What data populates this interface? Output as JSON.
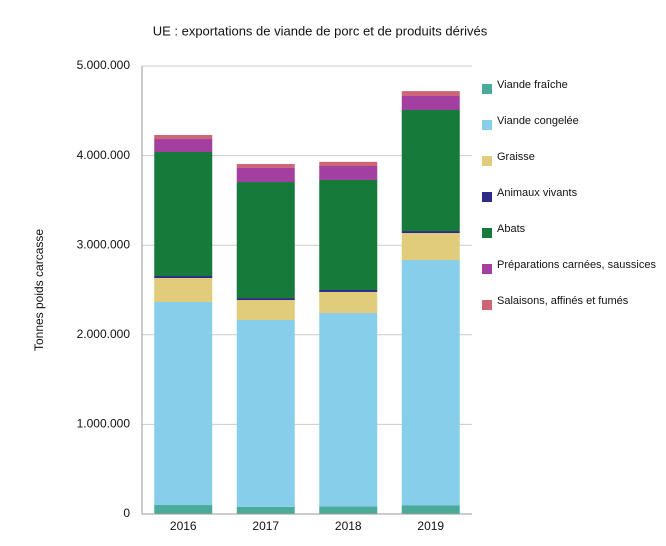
{
  "chart_data": {
    "type": "stacked_bar",
    "title": "UE : exportations de viande de porc et de produits dérivés",
    "y_label": "Tonnes poids carcasse",
    "categories": [
      "2016",
      "2017",
      "2018",
      "2019"
    ],
    "series": [
      {
        "name": "Viande fraîche",
        "color": "#4aab9b",
        "values": [
          100000,
          80000,
          85000,
          95000
        ]
      },
      {
        "name": "Viande congelée",
        "color": "#87ceeb",
        "values": [
          2266000,
          2085000,
          2158000,
          2740000
        ]
      },
      {
        "name": "Graisse",
        "color": "#e0cc7a",
        "values": [
          268000,
          223000,
          235000,
          301000
        ]
      },
      {
        "name": "Animaux vivants",
        "color": "#2e2a8a",
        "values": [
          22000,
          22000,
          22000,
          22000
        ]
      },
      {
        "name": "Abats",
        "color": "#167a3a",
        "values": [
          1384000,
          1295000,
          1228000,
          1351000
        ]
      },
      {
        "name": "Préparations carnées, saussices",
        "color": "#a23fa0",
        "values": [
          145000,
          157000,
          156000,
          156000
        ]
      },
      {
        "name": "Salaisons, affinés et fumés",
        "color": "#cc6677",
        "values": [
          45000,
          44000,
          46000,
          55000
        ]
      }
    ],
    "ylim": [
      0,
      5000000
    ],
    "yticks": [
      0,
      {
        "value": 1000000,
        "label": "1.000.000"
      },
      {
        "value": 2000000,
        "label": "2.000.000"
      },
      {
        "value": 3000000,
        "label": "3.000.000"
      },
      {
        "value": 4000000,
        "label": "4.000.000"
      },
      {
        "value": 5000000,
        "label": "5.000.000"
      }
    ],
    "grid": true,
    "legend": "right"
  }
}
